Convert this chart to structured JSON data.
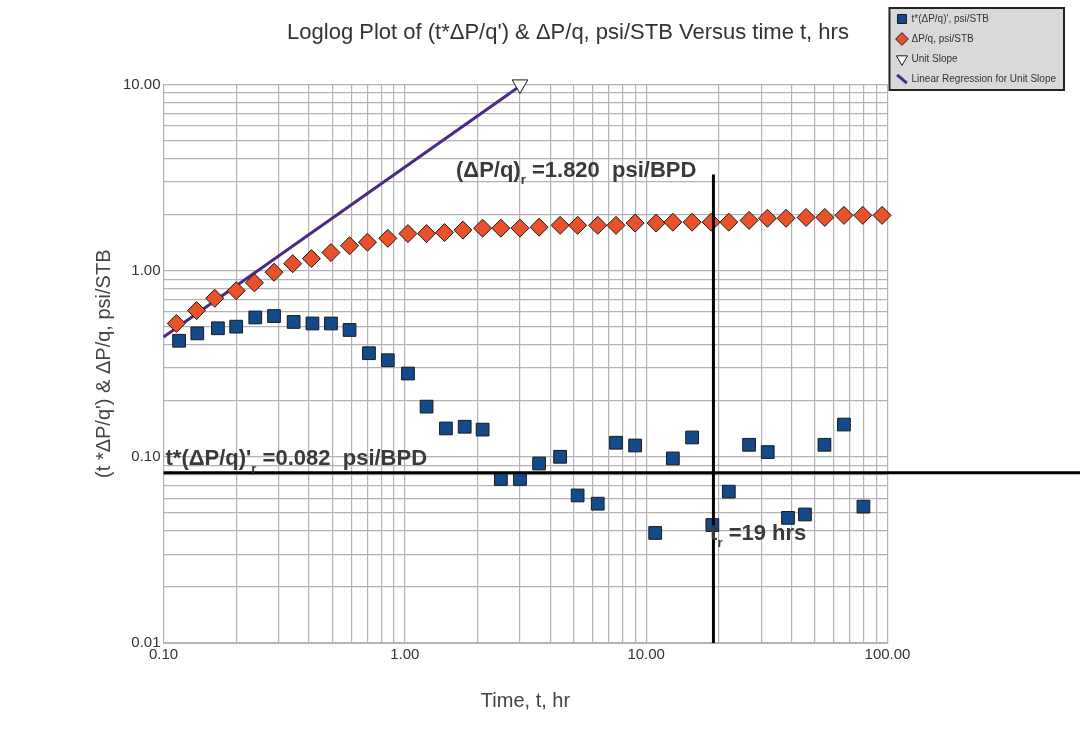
{
  "chart_data": {
    "type": "scatter",
    "title": "Loglog Plot of (t*ΔP/q') & ΔP/q, psi/STB Versus time t, hrs",
    "xlabel": "Time, t, hr",
    "ylabel": "(t *ΔP/q') & ΔP/q, psi/STB",
    "log": "xy",
    "grid": true,
    "legend": "top right",
    "xlim": [
      0.1,
      100
    ],
    "ylim": [
      0.01,
      10
    ],
    "xticks": [
      {
        "value": 0.1,
        "label": "0.10"
      },
      {
        "value": 0.2,
        "label": null
      },
      {
        "value": 0.3,
        "label": null
      },
      {
        "value": 0.4,
        "label": null
      },
      {
        "value": 0.5,
        "label": null
      },
      {
        "value": 0.6,
        "label": null
      },
      {
        "value": 0.7,
        "label": null
      },
      {
        "value": 0.8,
        "label": null
      },
      {
        "value": 0.9,
        "label": null
      },
      {
        "value": 1,
        "label": "1.00"
      },
      {
        "value": 2,
        "label": null
      },
      {
        "value": 3,
        "label": null
      },
      {
        "value": 4,
        "label": null
      },
      {
        "value": 5,
        "label": null
      },
      {
        "value": 6,
        "label": null
      },
      {
        "value": 7,
        "label": null
      },
      {
        "value": 8,
        "label": null
      },
      {
        "value": 9,
        "label": null
      },
      {
        "value": 10,
        "label": "10.00"
      },
      {
        "value": 20,
        "label": null
      },
      {
        "value": 30,
        "label": null
      },
      {
        "value": 40,
        "label": null
      },
      {
        "value": 50,
        "label": null
      },
      {
        "value": 60,
        "label": null
      },
      {
        "value": 70,
        "label": null
      },
      {
        "value": 80,
        "label": null
      },
      {
        "value": 90,
        "label": null
      },
      {
        "value": 100,
        "label": "100.00"
      }
    ],
    "yticks": [
      {
        "value": 0.01,
        "label": "0.01"
      },
      {
        "value": 0.02,
        "label": null
      },
      {
        "value": 0.03,
        "label": null
      },
      {
        "value": 0.04,
        "label": null
      },
      {
        "value": 0.05,
        "label": null
      },
      {
        "value": 0.06,
        "label": null
      },
      {
        "value": 0.07,
        "label": null
      },
      {
        "value": 0.08,
        "label": null
      },
      {
        "value": 0.09,
        "label": null
      },
      {
        "value": 0.1,
        "label": "0.10"
      },
      {
        "value": 0.2,
        "label": null
      },
      {
        "value": 0.3,
        "label": null
      },
      {
        "value": 0.4,
        "label": null
      },
      {
        "value": 0.5,
        "label": null
      },
      {
        "value": 0.6,
        "label": null
      },
      {
        "value": 0.7,
        "label": null
      },
      {
        "value": 0.8,
        "label": null
      },
      {
        "value": 0.9,
        "label": null
      },
      {
        "value": 1,
        "label": "1.00"
      },
      {
        "value": 2,
        "label": null
      },
      {
        "value": 3,
        "label": null
      },
      {
        "value": 4,
        "label": null
      },
      {
        "value": 5,
        "label": null
      },
      {
        "value": 6,
        "label": null
      },
      {
        "value": 7,
        "label": null
      },
      {
        "value": 8,
        "label": null
      },
      {
        "value": 9,
        "label": null
      },
      {
        "value": 10,
        "label": "10.00"
      }
    ],
    "series": [
      {
        "name": "t*(ΔP/q)', psi/STB",
        "type": "scatter",
        "marker": "square",
        "color": "#124a8a",
        "x": [
          0.116,
          0.138,
          0.168,
          0.2,
          0.24,
          0.287,
          0.346,
          0.414,
          0.494,
          0.59,
          0.71,
          0.85,
          1.03,
          1.23,
          1.48,
          1.77,
          2.1,
          2.5,
          3.0,
          3.6,
          4.4,
          5.2,
          6.3,
          7.5,
          9.0,
          10.9,
          12.9,
          15.5,
          18.8,
          22,
          26.7,
          31.9,
          38.7,
          45.5,
          54.8,
          66,
          79.5
        ],
        "values": [
          0.42,
          0.46,
          0.49,
          0.5,
          0.56,
          0.57,
          0.53,
          0.52,
          0.52,
          0.48,
          0.36,
          0.33,
          0.28,
          0.186,
          0.142,
          0.145,
          0.14,
          0.076,
          0.076,
          0.092,
          0.1,
          0.062,
          0.056,
          0.119,
          0.115,
          0.039,
          0.098,
          0.127,
          0.043,
          0.065,
          0.116,
          0.106,
          0.047,
          0.049,
          0.116,
          0.149,
          0.054
        ]
      },
      {
        "name": "ΔP/q, psi/STB",
        "type": "scatter",
        "marker": "diamond",
        "color": "#e8512a",
        "x": [
          0.113,
          0.137,
          0.163,
          0.2,
          0.238,
          0.287,
          0.343,
          0.41,
          0.494,
          0.59,
          0.7,
          0.85,
          1.03,
          1.23,
          1.46,
          1.74,
          2.1,
          2.5,
          3.0,
          3.6,
          4.4,
          5.2,
          6.3,
          7.5,
          9.0,
          11.0,
          12.9,
          15.5,
          18.6,
          22,
          26.7,
          31.8,
          38,
          46,
          55,
          66,
          79,
          95
        ],
        "values": [
          0.52,
          0.61,
          0.71,
          0.78,
          0.86,
          0.98,
          1.09,
          1.16,
          1.25,
          1.36,
          1.42,
          1.49,
          1.58,
          1.58,
          1.6,
          1.65,
          1.69,
          1.69,
          1.69,
          1.71,
          1.75,
          1.75,
          1.75,
          1.75,
          1.8,
          1.8,
          1.82,
          1.82,
          1.82,
          1.82,
          1.86,
          1.91,
          1.91,
          1.93,
          1.93,
          1.98,
          1.98,
          1.98
        ]
      },
      {
        "name": "Unit Slope",
        "type": "scatter",
        "marker": "triangle",
        "color": "#ffffff",
        "x": [
          3.0
        ],
        "values": [
          10
        ]
      },
      {
        "name": "Linear Regression for Unit Slope",
        "type": "line",
        "marker": "none",
        "color": "#4b2a85",
        "x": [
          0.1,
          3.0
        ],
        "values": [
          0.44,
          9.8
        ]
      }
    ],
    "ref_lines": [
      {
        "axis": "y",
        "value": 0.082,
        "label": "t*(ΔP/q)'$_{r}$ =0.082  psi/BPD",
        "color": "#000000"
      },
      {
        "axis": "x",
        "value": 19,
        "color": "#000000"
      }
    ],
    "annotations": [
      "(ΔP/q)$_{r}$ =1.820  psi/BPD",
      "t$_{r}$ =19 hrs"
    ]
  }
}
